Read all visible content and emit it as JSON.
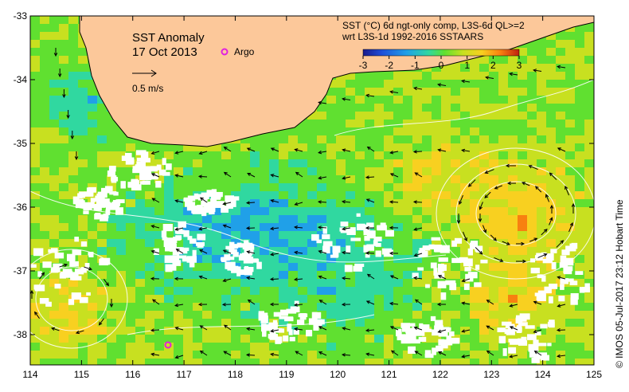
{
  "map": {
    "title": "SST Anomaly",
    "date": "17 Oct 2013",
    "argo_label": "Argo",
    "scale_label": "0.5 m/s",
    "colorbar_title_line1": "SST (°C) 6d ngt-only comp, L3S-6d QL>=2",
    "colorbar_title_line2": "wrt L3S-1d 1992-2016 SSTAARS",
    "colorbar_ticks": [
      "-3",
      "-2",
      "-1",
      "0",
      "1",
      "2",
      "3"
    ],
    "credit": "© IMOS 05-Jul-2017 23:12 Hobart Time",
    "x_ticks": [
      "114",
      "115",
      "116",
      "117",
      "118",
      "119",
      "120",
      "121",
      "122",
      "123",
      "124",
      "125"
    ],
    "y_ticks": [
      "-33",
      "-34",
      "-35",
      "-36",
      "-37",
      "-38"
    ],
    "colors": {
      "land": "#fcc89a",
      "frame": "#000000",
      "argo": "#e020e0",
      "colorbar": [
        "#1a1a8c",
        "#1f4fd8",
        "#20a0e8",
        "#30d8a0",
        "#60e030",
        "#c8e020",
        "#f8d020",
        "#f88010",
        "#c02010"
      ]
    }
  }
}
